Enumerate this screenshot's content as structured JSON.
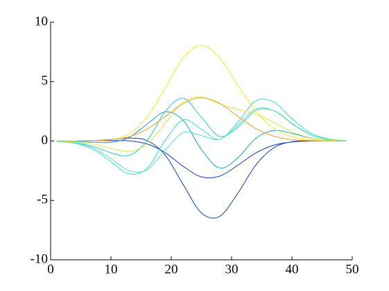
{
  "chart_data": {
    "type": "line",
    "x": [
      1,
      4,
      7,
      10,
      13,
      16,
      19,
      22,
      25,
      28,
      31,
      34,
      37,
      40,
      43,
      46,
      49
    ],
    "series": [
      {
        "color": "#1436c8",
        "values": [
          0,
          0,
          0.01,
          0.03,
          0.01,
          -0.25,
          -0.99,
          -2.14,
          -3.02,
          -2.96,
          -2.05,
          -1.01,
          -0.35,
          -0.08,
          -0.01,
          0,
          0
        ]
      },
      {
        "color": "#0a40d0",
        "values": [
          0,
          0,
          0.03,
          0.12,
          0.24,
          0.04,
          -1.19,
          -3.69,
          -6.06,
          -6.35,
          -4.42,
          -2.03,
          -0.57,
          -0.06,
          0.02,
          0.01,
          0
        ]
      },
      {
        "color": "#1e9ee0",
        "values": [
          -0.01,
          -0.04,
          -0.1,
          -0.11,
          0.3,
          1.42,
          2.45,
          1.72,
          -0.72,
          -2.27,
          -1.43,
          0.22,
          0.88,
          0.64,
          0.26,
          0.07,
          0.01
        ]
      },
      {
        "color": "#2cc8d8",
        "values": [
          -0.03,
          -0.13,
          -0.44,
          -0.99,
          -1.21,
          0.02,
          2.49,
          3.6,
          2,
          0.39,
          1.14,
          2.57,
          2.56,
          1.49,
          0.56,
          0.15,
          0.03
        ]
      },
      {
        "color": "#3cdcd0",
        "values": [
          -0.04,
          -0.19,
          -0.69,
          -1.73,
          -2.77,
          -2.3,
          0.06,
          1.78,
          0.98,
          0.13,
          1.57,
          3.38,
          3.27,
          1.87,
          0.7,
          0.18,
          0.03
        ]
      },
      {
        "color": "#58e6b8",
        "values": [
          -0.03,
          -0.15,
          -0.57,
          -1.48,
          -2.49,
          -2.42,
          -0.76,
          0.71,
          0.46,
          0.13,
          1.34,
          2.7,
          2.56,
          1.45,
          0.54,
          0.14,
          0.03
        ]
      },
      {
        "color": "#e2e83c",
        "values": [
          -0.01,
          -0.07,
          -0.25,
          -0.61,
          -0.86,
          -0.26,
          1.51,
          3.28,
          3.69,
          3.13,
          2.66,
          2.28,
          1.58,
          0.79,
          0.28,
          0.07,
          0.01
        ]
      },
      {
        "color": "#f0f020",
        "values": [
          0,
          -0.01,
          0,
          0.1,
          0.6,
          2.02,
          4.48,
          7.02,
          8.07,
          7,
          4.71,
          2.52,
          1.08,
          0.37,
          0.1,
          0.02,
          0
        ]
      },
      {
        "color": "#f4a020",
        "values": [
          0,
          0,
          0.02,
          0.1,
          0.36,
          1.01,
          2.07,
          3.17,
          3.65,
          3.17,
          2.09,
          1.05,
          0.41,
          0.12,
          0.03,
          0,
          0
        ]
      }
    ],
    "xlim": [
      0,
      50
    ],
    "xticks": [
      0,
      10,
      20,
      30,
      40,
      50
    ],
    "ylim": [
      -10,
      10
    ],
    "yticks": [
      -10,
      -5,
      0,
      5,
      10
    ],
    "grid": false
  }
}
